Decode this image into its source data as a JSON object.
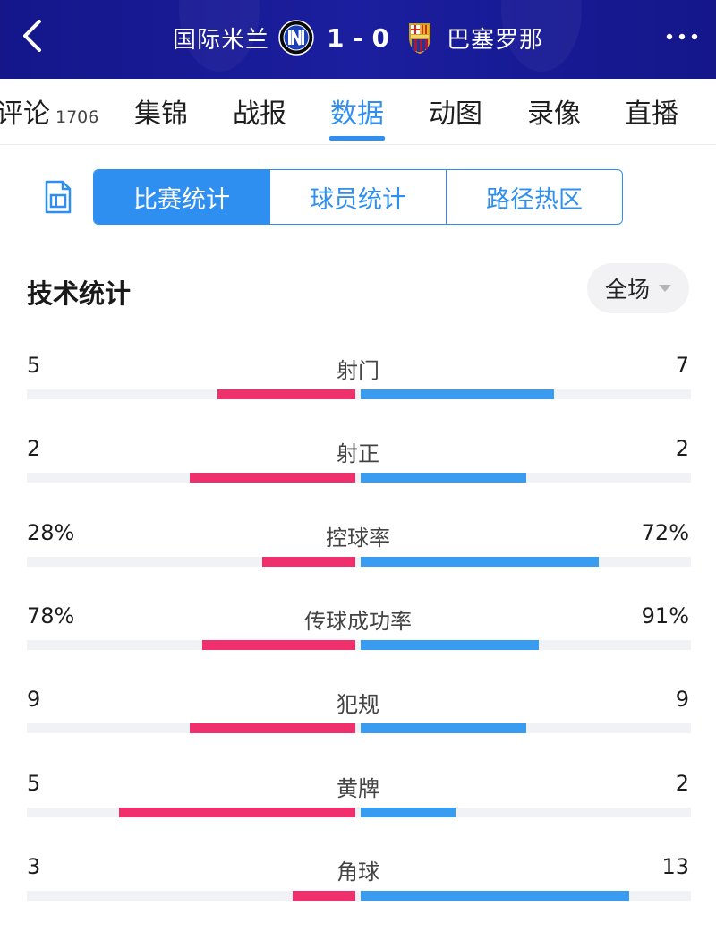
{
  "header": {
    "home_team": "国际米兰",
    "score": "1 - 0",
    "away_team": "巴塞罗那",
    "back_icon": "chevron-left-icon",
    "more_icon": "more-dots-icon"
  },
  "tabs": [
    {
      "label": "评论",
      "count": "1706"
    },
    {
      "label": "集锦"
    },
    {
      "label": "战报"
    },
    {
      "label": "数据",
      "active": true
    },
    {
      "label": "动图"
    },
    {
      "label": "录像"
    },
    {
      "label": "直播"
    }
  ],
  "segment": {
    "options": [
      "比赛统计",
      "球员统计",
      "路径热区"
    ],
    "active_index": 0
  },
  "section": {
    "title": "技术统计",
    "period": "全场"
  },
  "colors": {
    "home": "#f0306c",
    "away": "#3a9cf0",
    "accent": "#2f8ff0",
    "header_bg": "#17198f"
  },
  "stats": [
    {
      "label": "射门",
      "home": "5",
      "away": "7",
      "home_share": 0.417,
      "away_share": 0.583
    },
    {
      "label": "射正",
      "home": "2",
      "away": "2",
      "home_share": 0.5,
      "away_share": 0.5
    },
    {
      "label": "控球率",
      "home": "28%",
      "away": "72%",
      "home_share": 0.28,
      "away_share": 0.72
    },
    {
      "label": "传球成功率",
      "home": "78%",
      "away": "91%",
      "home_share": 0.462,
      "away_share": 0.538
    },
    {
      "label": "犯规",
      "home": "9",
      "away": "9",
      "home_share": 0.5,
      "away_share": 0.5
    },
    {
      "label": "黄牌",
      "home": "5",
      "away": "2",
      "home_share": 0.714,
      "away_share": 0.286
    },
    {
      "label": "角球",
      "home": "3",
      "away": "13",
      "home_share": 0.188,
      "away_share": 0.812
    }
  ]
}
